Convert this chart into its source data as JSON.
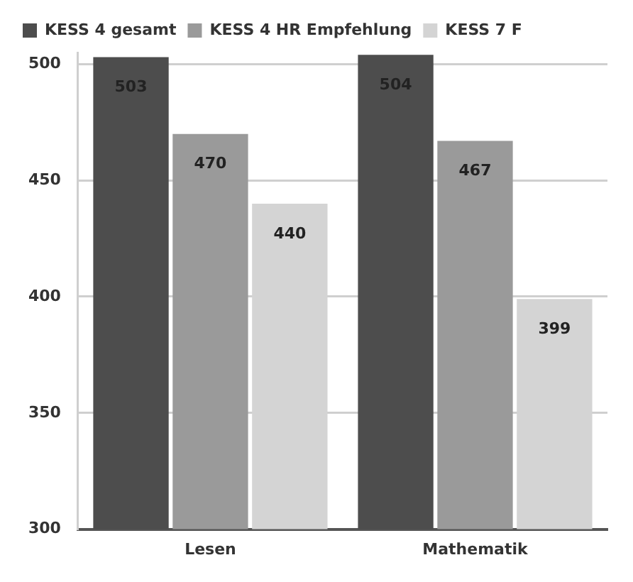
{
  "chart_data": {
    "type": "bar",
    "categories": [
      "Lesen",
      "Mathematik"
    ],
    "series": [
      {
        "name": "KESS 4 gesamt",
        "color": "#4d4d4d",
        "values": [
          503,
          504
        ]
      },
      {
        "name": "KESS 4 HR Empfehlung",
        "color": "#9a9a9a",
        "values": [
          470,
          467
        ]
      },
      {
        "name": "KESS 7 F",
        "color": "#d4d4d4",
        "values": [
          440,
          399
        ]
      }
    ],
    "ylim": [
      300,
      505
    ],
    "yticks": [
      300,
      350,
      400,
      450,
      500
    ],
    "grid": "y",
    "legend": "top left",
    "data_labels": true
  }
}
